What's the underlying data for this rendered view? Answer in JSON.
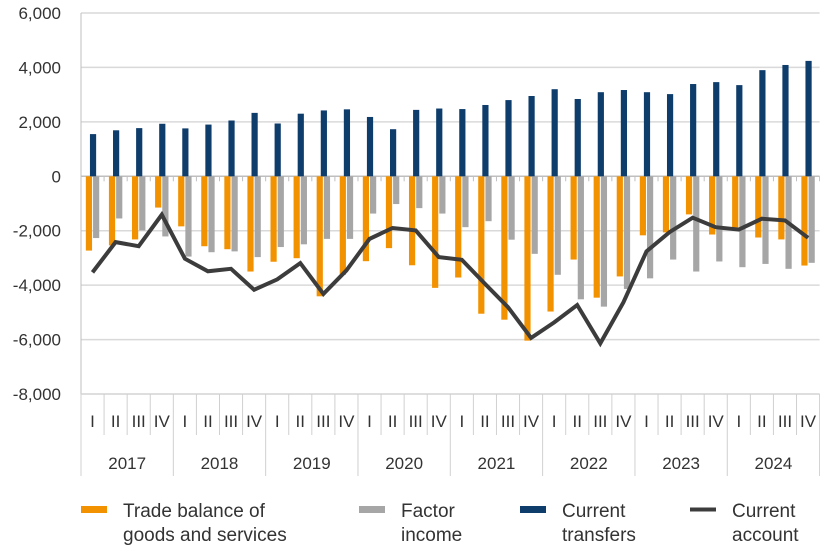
{
  "chart_data": {
    "type": "bar",
    "ylim": [
      -8000,
      6000
    ],
    "yticks": [
      "6,000",
      "4,000",
      "2,000",
      "0",
      "-2,000",
      "-4,000",
      "-6,000",
      "-8,000"
    ],
    "ytick_values": [
      6000,
      4000,
      2000,
      0,
      -2000,
      -4000,
      -6000,
      -8000
    ],
    "grid": true,
    "legend_placement": "bottom",
    "years": [
      "2017",
      "2018",
      "2019",
      "2020",
      "2021",
      "2022",
      "2023",
      "2024"
    ],
    "quarters": [
      "I",
      "II",
      "III",
      "IV"
    ],
    "series": [
      {
        "name": "Trade balance of goods and services",
        "name_lines": [
          "Trade balance of",
          "goods and services"
        ],
        "kind": "bar",
        "color": "#F39200",
        "values": [
          -2730,
          -2540,
          -2320,
          -1150,
          -1840,
          -2570,
          -2680,
          -3500,
          -3140,
          -3010,
          -4410,
          -3620,
          -3120,
          -2640,
          -3270,
          -4100,
          -3720,
          -5050,
          -5270,
          -6040,
          -4970,
          -3060,
          -4460,
          -3680,
          -2170,
          -2060,
          -1400,
          -2140,
          -1880,
          -2250,
          -2320,
          -3280
        ]
      },
      {
        "name": "Factor income",
        "name_lines": [
          "Factor",
          "income"
        ],
        "kind": "bar",
        "color": "#A6A6A6",
        "values": [
          -2270,
          -1550,
          -1990,
          -2210,
          -2950,
          -2790,
          -2760,
          -2970,
          -2600,
          -2500,
          -2300,
          -2300,
          -1370,
          -1020,
          -1170,
          -1370,
          -1870,
          -1650,
          -2330,
          -2850,
          -3620,
          -4520,
          -4790,
          -4140,
          -3750,
          -3060,
          -3500,
          -3130,
          -3340,
          -3220,
          -3400,
          -3180
        ]
      },
      {
        "name": "Current transfers",
        "name_lines": [
          "Current",
          "transfers"
        ],
        "kind": "bar",
        "color": "#0E3D6B",
        "values": [
          1550,
          1690,
          1770,
          1930,
          1760,
          1900,
          2050,
          2330,
          1940,
          2300,
          2420,
          2460,
          2180,
          1730,
          2440,
          2490,
          2470,
          2620,
          2800,
          2950,
          3200,
          2840,
          3090,
          3170,
          3090,
          3020,
          3390,
          3460,
          3350,
          3900,
          4090,
          4240
        ]
      },
      {
        "name": "Current account",
        "name_lines": [
          "Current",
          "account"
        ],
        "kind": "line",
        "color": "#3C3C3C",
        "values": [
          -3530,
          -2420,
          -2570,
          -1410,
          -3030,
          -3490,
          -3400,
          -4170,
          -3790,
          -3190,
          -4320,
          -3460,
          -2300,
          -1900,
          -1990,
          -2970,
          -3070,
          -3950,
          -4810,
          -5940,
          -5370,
          -4730,
          -6140,
          -4630,
          -2760,
          -2050,
          -1520,
          -1870,
          -1960,
          -1560,
          -1620,
          -2260
        ]
      }
    ]
  }
}
